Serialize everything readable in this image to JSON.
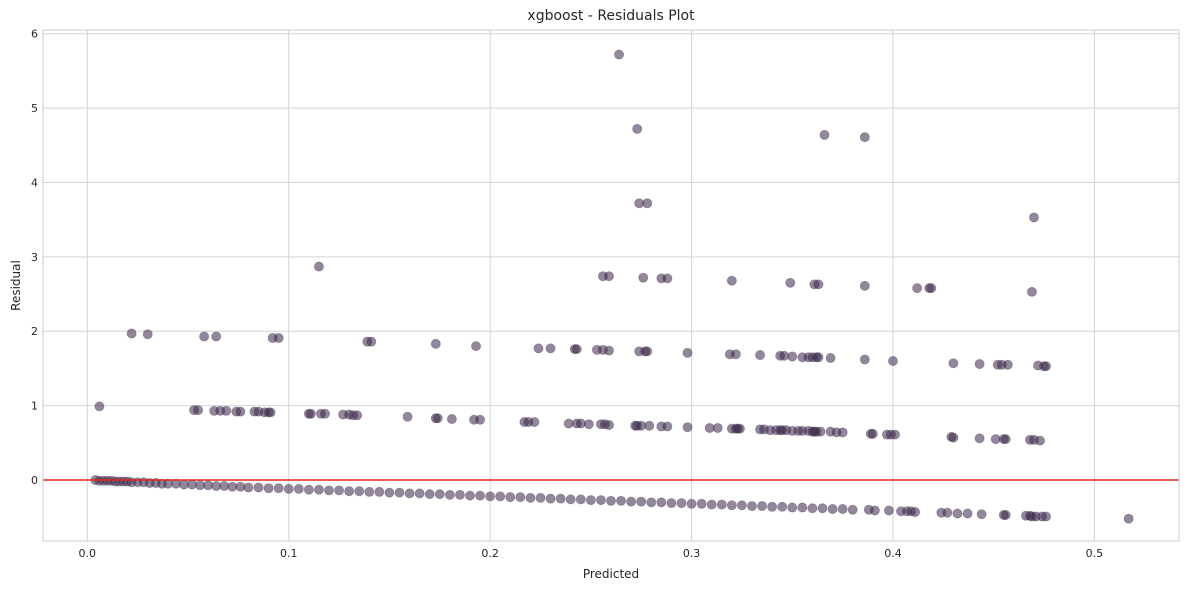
{
  "chart_data": {
    "type": "scatter",
    "title": "xgboost - Residuals Plot",
    "xlabel": "Predicted",
    "ylabel": "Residual",
    "xlim": [
      -0.022,
      0.542
    ],
    "ylim": [
      -0.82,
      6.05
    ],
    "xticks": [
      0.0,
      0.1,
      0.2,
      0.3,
      0.4,
      0.5
    ],
    "xtick_labels": [
      "0.0",
      "0.1",
      "0.2",
      "0.3",
      "0.4",
      "0.5"
    ],
    "yticks": [
      0,
      1,
      2,
      3,
      4,
      5,
      6
    ],
    "ytick_labels": [
      "0",
      "1",
      "2",
      "3",
      "4",
      "5",
      "6"
    ],
    "grid": true,
    "point_color": "#3b2748",
    "point_opacity": 0.55,
    "reference_line": {
      "y": 0,
      "color": "#e3261f"
    },
    "points": [
      [
        0.264,
        5.72
      ],
      [
        0.273,
        4.72
      ],
      [
        0.366,
        4.64
      ],
      [
        0.386,
        4.61
      ],
      [
        0.274,
        3.72
      ],
      [
        0.278,
        3.72
      ],
      [
        0.47,
        3.53
      ],
      [
        0.115,
        2.87
      ],
      [
        0.256,
        2.74
      ],
      [
        0.259,
        2.74
      ],
      [
        0.276,
        2.72
      ],
      [
        0.285,
        2.71
      ],
      [
        0.288,
        2.71
      ],
      [
        0.32,
        2.68
      ],
      [
        0.349,
        2.65
      ],
      [
        0.361,
        2.63
      ],
      [
        0.363,
        2.63
      ],
      [
        0.386,
        2.61
      ],
      [
        0.412,
        2.58
      ],
      [
        0.418,
        2.58
      ],
      [
        0.419,
        2.58
      ],
      [
        0.469,
        2.53
      ],
      [
        0.022,
        1.97
      ],
      [
        0.03,
        1.96
      ],
      [
        0.058,
        1.93
      ],
      [
        0.064,
        1.93
      ],
      [
        0.092,
        1.91
      ],
      [
        0.095,
        1.91
      ],
      [
        0.139,
        1.86
      ],
      [
        0.141,
        1.86
      ],
      [
        0.173,
        1.83
      ],
      [
        0.193,
        1.8
      ],
      [
        0.224,
        1.77
      ],
      [
        0.23,
        1.77
      ],
      [
        0.242,
        1.76
      ],
      [
        0.243,
        1.76
      ],
      [
        0.253,
        1.75
      ],
      [
        0.256,
        1.75
      ],
      [
        0.259,
        1.74
      ],
      [
        0.274,
        1.73
      ],
      [
        0.277,
        1.73
      ],
      [
        0.278,
        1.73
      ],
      [
        0.298,
        1.71
      ],
      [
        0.319,
        1.69
      ],
      [
        0.322,
        1.69
      ],
      [
        0.334,
        1.68
      ],
      [
        0.344,
        1.67
      ],
      [
        0.346,
        1.67
      ],
      [
        0.35,
        1.66
      ],
      [
        0.355,
        1.65
      ],
      [
        0.358,
        1.65
      ],
      [
        0.36,
        1.65
      ],
      [
        0.362,
        1.65
      ],
      [
        0.363,
        1.65
      ],
      [
        0.369,
        1.64
      ],
      [
        0.386,
        1.62
      ],
      [
        0.4,
        1.6
      ],
      [
        0.43,
        1.57
      ],
      [
        0.443,
        1.56
      ],
      [
        0.452,
        1.55
      ],
      [
        0.454,
        1.55
      ],
      [
        0.457,
        1.55
      ],
      [
        0.472,
        1.54
      ],
      [
        0.475,
        1.53
      ],
      [
        0.476,
        1.53
      ],
      [
        0.006,
        0.99
      ],
      [
        0.053,
        0.94
      ],
      [
        0.055,
        0.94
      ],
      [
        0.063,
        0.93
      ],
      [
        0.066,
        0.93
      ],
      [
        0.069,
        0.93
      ],
      [
        0.074,
        0.92
      ],
      [
        0.076,
        0.92
      ],
      [
        0.083,
        0.92
      ],
      [
        0.085,
        0.92
      ],
      [
        0.088,
        0.91
      ],
      [
        0.09,
        0.91
      ],
      [
        0.091,
        0.91
      ],
      [
        0.11,
        0.89
      ],
      [
        0.111,
        0.89
      ],
      [
        0.116,
        0.89
      ],
      [
        0.118,
        0.89
      ],
      [
        0.127,
        0.88
      ],
      [
        0.13,
        0.88
      ],
      [
        0.132,
        0.87
      ],
      [
        0.134,
        0.87
      ],
      [
        0.159,
        0.85
      ],
      [
        0.173,
        0.83
      ],
      [
        0.174,
        0.83
      ],
      [
        0.181,
        0.82
      ],
      [
        0.192,
        0.81
      ],
      [
        0.195,
        0.81
      ],
      [
        0.217,
        0.78
      ],
      [
        0.219,
        0.78
      ],
      [
        0.222,
        0.78
      ],
      [
        0.239,
        0.76
      ],
      [
        0.243,
        0.76
      ],
      [
        0.245,
        0.76
      ],
      [
        0.249,
        0.75
      ],
      [
        0.255,
        0.75
      ],
      [
        0.257,
        0.75
      ],
      [
        0.259,
        0.74
      ],
      [
        0.272,
        0.73
      ],
      [
        0.273,
        0.73
      ],
      [
        0.275,
        0.73
      ],
      [
        0.279,
        0.73
      ],
      [
        0.285,
        0.72
      ],
      [
        0.288,
        0.72
      ],
      [
        0.298,
        0.71
      ],
      [
        0.309,
        0.7
      ],
      [
        0.313,
        0.7
      ],
      [
        0.32,
        0.69
      ],
      [
        0.322,
        0.69
      ],
      [
        0.323,
        0.69
      ],
      [
        0.324,
        0.69
      ],
      [
        0.334,
        0.68
      ],
      [
        0.336,
        0.68
      ],
      [
        0.339,
        0.67
      ],
      [
        0.342,
        0.67
      ],
      [
        0.344,
        0.67
      ],
      [
        0.345,
        0.67
      ],
      [
        0.347,
        0.67
      ],
      [
        0.35,
        0.66
      ],
      [
        0.353,
        0.66
      ],
      [
        0.355,
        0.66
      ],
      [
        0.358,
        0.66
      ],
      [
        0.36,
        0.65
      ],
      [
        0.361,
        0.65
      ],
      [
        0.362,
        0.65
      ],
      [
        0.364,
        0.65
      ],
      [
        0.369,
        0.65
      ],
      [
        0.372,
        0.64
      ],
      [
        0.375,
        0.64
      ],
      [
        0.389,
        0.62
      ],
      [
        0.39,
        0.62
      ],
      [
        0.397,
        0.61
      ],
      [
        0.399,
        0.61
      ],
      [
        0.401,
        0.61
      ],
      [
        0.429,
        0.58
      ],
      [
        0.43,
        0.57
      ],
      [
        0.443,
        0.56
      ],
      [
        0.451,
        0.55
      ],
      [
        0.455,
        0.55
      ],
      [
        0.456,
        0.55
      ],
      [
        0.468,
        0.54
      ],
      [
        0.47,
        0.54
      ],
      [
        0.473,
        0.53
      ],
      [
        0.004,
        0.0
      ],
      [
        0.006,
        -0.01
      ],
      [
        0.008,
        -0.01
      ],
      [
        0.01,
        -0.01
      ],
      [
        0.012,
        -0.01
      ],
      [
        0.014,
        -0.02
      ],
      [
        0.016,
        -0.02
      ],
      [
        0.018,
        -0.02
      ],
      [
        0.02,
        -0.02
      ],
      [
        0.022,
        -0.03
      ],
      [
        0.025,
        -0.03
      ],
      [
        0.028,
        -0.03
      ],
      [
        0.031,
        -0.04
      ],
      [
        0.034,
        -0.04
      ],
      [
        0.037,
        -0.05
      ],
      [
        0.04,
        -0.05
      ],
      [
        0.044,
        -0.05
      ],
      [
        0.048,
        -0.06
      ],
      [
        0.052,
        -0.06
      ],
      [
        0.056,
        -0.07
      ],
      [
        0.06,
        -0.07
      ],
      [
        0.064,
        -0.08
      ],
      [
        0.068,
        -0.08
      ],
      [
        0.072,
        -0.09
      ],
      [
        0.076,
        -0.09
      ],
      [
        0.08,
        -0.1
      ],
      [
        0.085,
        -0.1
      ],
      [
        0.09,
        -0.11
      ],
      [
        0.095,
        -0.11
      ],
      [
        0.1,
        -0.12
      ],
      [
        0.105,
        -0.12
      ],
      [
        0.11,
        -0.13
      ],
      [
        0.115,
        -0.13
      ],
      [
        0.12,
        -0.14
      ],
      [
        0.125,
        -0.14
      ],
      [
        0.13,
        -0.15
      ],
      [
        0.135,
        -0.15
      ],
      [
        0.14,
        -0.16
      ],
      [
        0.145,
        -0.16
      ],
      [
        0.15,
        -0.17
      ],
      [
        0.155,
        -0.17
      ],
      [
        0.16,
        -0.18
      ],
      [
        0.165,
        -0.18
      ],
      [
        0.17,
        -0.19
      ],
      [
        0.175,
        -0.19
      ],
      [
        0.18,
        -0.2
      ],
      [
        0.185,
        -0.2
      ],
      [
        0.19,
        -0.21
      ],
      [
        0.195,
        -0.21
      ],
      [
        0.2,
        -0.22
      ],
      [
        0.205,
        -0.22
      ],
      [
        0.21,
        -0.23
      ],
      [
        0.215,
        -0.23
      ],
      [
        0.22,
        -0.24
      ],
      [
        0.225,
        -0.24
      ],
      [
        0.23,
        -0.25
      ],
      [
        0.235,
        -0.25
      ],
      [
        0.24,
        -0.26
      ],
      [
        0.245,
        -0.26
      ],
      [
        0.25,
        -0.27
      ],
      [
        0.255,
        -0.27
      ],
      [
        0.26,
        -0.28
      ],
      [
        0.265,
        -0.28
      ],
      [
        0.27,
        -0.29
      ],
      [
        0.275,
        -0.29
      ],
      [
        0.28,
        -0.3
      ],
      [
        0.285,
        -0.3
      ],
      [
        0.29,
        -0.31
      ],
      [
        0.295,
        -0.31
      ],
      [
        0.3,
        -0.32
      ],
      [
        0.305,
        -0.32
      ],
      [
        0.31,
        -0.33
      ],
      [
        0.315,
        -0.33
      ],
      [
        0.32,
        -0.34
      ],
      [
        0.325,
        -0.34
      ],
      [
        0.33,
        -0.35
      ],
      [
        0.335,
        -0.35
      ],
      [
        0.34,
        -0.36
      ],
      [
        0.345,
        -0.36
      ],
      [
        0.35,
        -0.37
      ],
      [
        0.355,
        -0.37
      ],
      [
        0.36,
        -0.38
      ],
      [
        0.365,
        -0.38
      ],
      [
        0.37,
        -0.39
      ],
      [
        0.375,
        -0.39
      ],
      [
        0.38,
        -0.4
      ],
      [
        0.388,
        -0.4
      ],
      [
        0.391,
        -0.41
      ],
      [
        0.398,
        -0.41
      ],
      [
        0.404,
        -0.42
      ],
      [
        0.407,
        -0.42
      ],
      [
        0.409,
        -0.42
      ],
      [
        0.411,
        -0.43
      ],
      [
        0.424,
        -0.44
      ],
      [
        0.427,
        -0.44
      ],
      [
        0.432,
        -0.45
      ],
      [
        0.437,
        -0.45
      ],
      [
        0.444,
        -0.46
      ],
      [
        0.455,
        -0.47
      ],
      [
        0.456,
        -0.47
      ],
      [
        0.466,
        -0.48
      ],
      [
        0.468,
        -0.48
      ],
      [
        0.469,
        -0.49
      ],
      [
        0.471,
        -0.49
      ],
      [
        0.474,
        -0.49
      ],
      [
        0.476,
        -0.49
      ],
      [
        0.517,
        -0.52
      ]
    ]
  }
}
